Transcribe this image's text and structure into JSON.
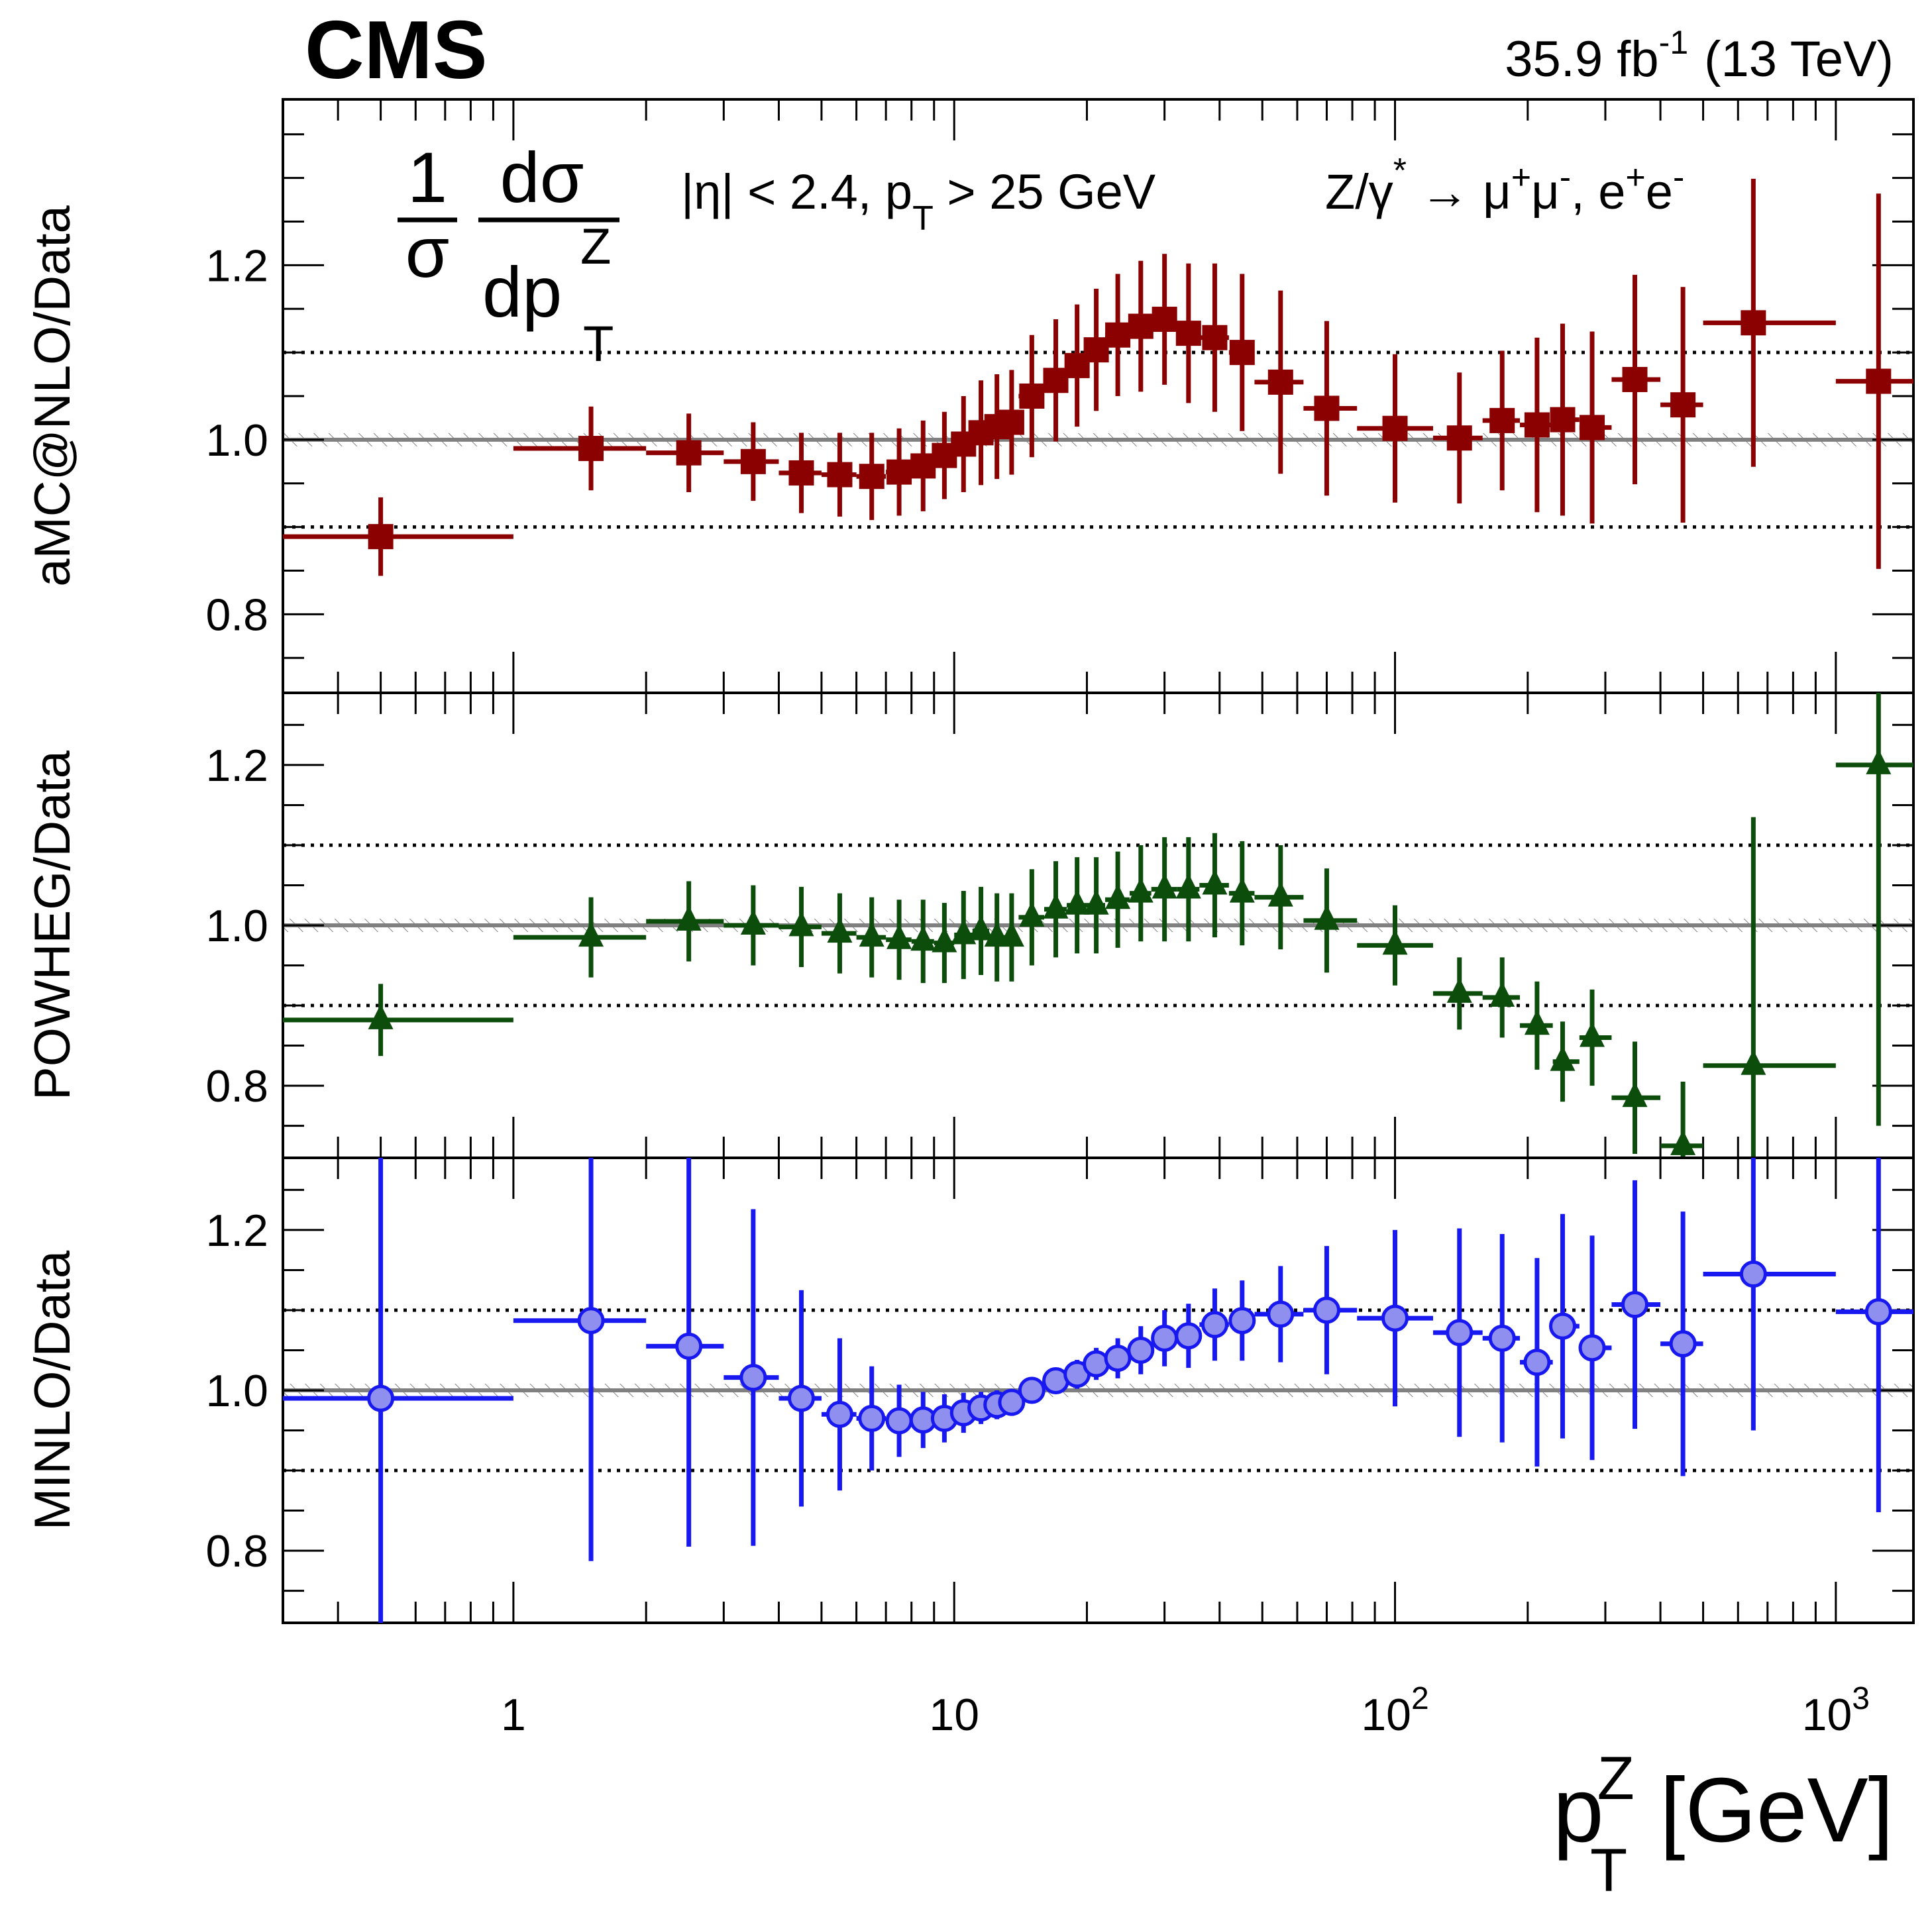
{
  "header": {
    "experiment": "CMS",
    "lumi_value": "35.9 fb",
    "lumi_exp": "-1",
    "energy": "(13 TeV)"
  },
  "annotation": {
    "formula": {
      "one": "1",
      "sigma": "σ",
      "dsigma": "dσ",
      "dp": "dp",
      "sup": "Z",
      "sub": "T"
    },
    "cuts": {
      "eta": "|η| < 2.4, p",
      "sub": "T",
      "rest": " > 25 GeV"
    },
    "process": {
      "a": "Z/γ",
      "star": "*",
      "b": " → μ",
      "plus": "+",
      "mu": "μ",
      "minus": "-",
      "c": ", e",
      "e": "e"
    }
  },
  "xaxis": {
    "tick_labels": [
      "1",
      "10",
      "10",
      "10"
    ],
    "tick_exponents": [
      "",
      "",
      "2",
      "3"
    ],
    "label_p": "p",
    "label_sup": "Z",
    "label_sub": "T",
    "label_unit": " [GeV]",
    "scale": "log",
    "range": [
      0.3,
      1500
    ]
  },
  "colors": {
    "amc": "#8b0000",
    "powheg": "#0c4d0c",
    "minlo_line": "#1818f0",
    "minlo_fill": "#8f8ff0",
    "reference": "#808080",
    "band": "#606060"
  },
  "chart_data": [
    {
      "type": "scatter",
      "ylabel": "aMC@NLO/Data",
      "ylim": [
        0.71,
        1.39
      ],
      "yticks": [
        "0.8",
        "1.0",
        "1.2"
      ],
      "grid": "dotted lines at 0.9 and 1.1",
      "marker": "square",
      "color": "#8b0000",
      "x": [
        0.5,
        1.5,
        2.5,
        3.5,
        4.5,
        5.5,
        6.5,
        7.5,
        8.5,
        9.5,
        10.5,
        11.5,
        12.5,
        13.5,
        15,
        17,
        19,
        21,
        23.5,
        26.5,
        30,
        34,
        39,
        45,
        55,
        70,
        100,
        140,
        175,
        210,
        240,
        280,
        350,
        450,
        650,
        1250
      ],
      "xlo": [
        0.3,
        1,
        2,
        3,
        4,
        5,
        6,
        7,
        8,
        9,
        10,
        11,
        12,
        13,
        14,
        16,
        18,
        20,
        22,
        25,
        28,
        32,
        36,
        42,
        48,
        62,
        82,
        122,
        158,
        192,
        228,
        262,
        310,
        400,
        500,
        1000
      ],
      "xhi": [
        1,
        2,
        3,
        4,
        5,
        6,
        7,
        8,
        9,
        10,
        11,
        12,
        13,
        14,
        16,
        18,
        20,
        22,
        25,
        28,
        32,
        36,
        42,
        48,
        62,
        82,
        122,
        158,
        192,
        228,
        262,
        310,
        400,
        500,
        1000,
        1500
      ],
      "values": [
        0.889,
        0.99,
        0.985,
        0.975,
        0.962,
        0.96,
        0.958,
        0.963,
        0.97,
        0.982,
        0.995,
        1.008,
        1.015,
        1.02,
        1.05,
        1.068,
        1.085,
        1.103,
        1.12,
        1.13,
        1.138,
        1.122,
        1.117,
        1.1,
        1.066,
        1.036,
        1.013,
        1.002,
        1.022,
        1.017,
        1.023,
        1.014,
        1.069,
        1.04,
        1.134,
        1.067
      ],
      "err": [
        0.045,
        0.048,
        0.045,
        0.045,
        0.046,
        0.048,
        0.05,
        0.05,
        0.052,
        0.05,
        0.055,
        0.06,
        0.06,
        0.06,
        0.07,
        0.07,
        0.07,
        0.07,
        0.07,
        0.075,
        0.075,
        0.08,
        0.085,
        0.09,
        0.105,
        0.1,
        0.085,
        0.075,
        0.08,
        0.1,
        0.11,
        0.11,
        0.12,
        0.135,
        0.165,
        0.215
      ]
    },
    {
      "type": "scatter",
      "ylabel": "POWHEG/Data",
      "ylim": [
        0.71,
        1.29
      ],
      "yticks": [
        "0.8",
        "1.0",
        "1.2"
      ],
      "grid": "dotted lines at 0.9 and 1.1",
      "marker": "triangle",
      "color": "#0c4d0c",
      "x": [
        0.5,
        1.5,
        2.5,
        3.5,
        4.5,
        5.5,
        6.5,
        7.5,
        8.5,
        9.5,
        10.5,
        11.5,
        12.5,
        13.5,
        15,
        17,
        19,
        21,
        23.5,
        26.5,
        30,
        34,
        39,
        45,
        55,
        70,
        100,
        140,
        175,
        210,
        240,
        280,
        350,
        450,
        650,
        1250
      ],
      "xlo": [
        0.3,
        1,
        2,
        3,
        4,
        5,
        6,
        7,
        8,
        9,
        10,
        11,
        12,
        13,
        14,
        16,
        18,
        20,
        22,
        25,
        28,
        32,
        36,
        42,
        48,
        62,
        82,
        122,
        158,
        192,
        228,
        262,
        310,
        400,
        500,
        1000
      ],
      "xhi": [
        1,
        2,
        3,
        4,
        5,
        6,
        7,
        8,
        9,
        10,
        11,
        12,
        13,
        14,
        16,
        18,
        20,
        22,
        25,
        28,
        32,
        36,
        42,
        48,
        62,
        82,
        122,
        158,
        192,
        228,
        262,
        310,
        400,
        500,
        1000,
        1500
      ],
      "values": [
        0.882,
        0.985,
        1.005,
        1.0,
        0.998,
        0.99,
        0.985,
        0.982,
        0.98,
        0.978,
        0.988,
        0.993,
        0.985,
        0.985,
        1.01,
        1.02,
        1.025,
        1.025,
        1.032,
        1.04,
        1.045,
        1.045,
        1.05,
        1.04,
        1.035,
        1.006,
        0.975,
        0.915,
        0.91,
        0.875,
        0.83,
        0.86,
        0.785,
        0.725,
        0.825,
        1.2
      ],
      "err": [
        0.045,
        0.05,
        0.05,
        0.05,
        0.05,
        0.05,
        0.05,
        0.05,
        0.052,
        0.05,
        0.055,
        0.055,
        0.055,
        0.055,
        0.06,
        0.06,
        0.06,
        0.06,
        0.06,
        0.06,
        0.065,
        0.065,
        0.065,
        0.065,
        0.065,
        0.065,
        0.05,
        0.045,
        0.05,
        0.055,
        0.05,
        0.06,
        0.07,
        0.08,
        0.31,
        0.45
      ]
    },
    {
      "type": "scatter",
      "ylabel": "MINLO/Data",
      "ylim": [
        0.71,
        1.29
      ],
      "yticks": [
        "0.8",
        "1.0",
        "1.2"
      ],
      "grid": "dotted lines at 0.9 and 1.1",
      "marker": "circle",
      "color": "#1818f0",
      "x": [
        0.5,
        1.5,
        2.5,
        3.5,
        4.5,
        5.5,
        6.5,
        7.5,
        8.5,
        9.5,
        10.5,
        11.5,
        12.5,
        13.5,
        15,
        17,
        19,
        21,
        23.5,
        26.5,
        30,
        34,
        39,
        45,
        55,
        70,
        100,
        140,
        175,
        210,
        240,
        280,
        350,
        450,
        650,
        1250
      ],
      "xlo": [
        0.3,
        1,
        2,
        3,
        4,
        5,
        6,
        7,
        8,
        9,
        10,
        11,
        12,
        13,
        14,
        16,
        18,
        20,
        22,
        25,
        28,
        32,
        36,
        42,
        48,
        62,
        82,
        122,
        158,
        192,
        228,
        262,
        310,
        400,
        500,
        1000
      ],
      "xhi": [
        1,
        2,
        3,
        4,
        5,
        6,
        7,
        8,
        9,
        10,
        11,
        12,
        13,
        14,
        16,
        18,
        20,
        22,
        25,
        28,
        32,
        36,
        42,
        48,
        62,
        82,
        122,
        158,
        192,
        228,
        262,
        310,
        400,
        500,
        1000,
        1500
      ],
      "values": [
        0.99,
        1.087,
        1.055,
        1.016,
        0.99,
        0.97,
        0.965,
        0.962,
        0.963,
        0.965,
        0.972,
        0.978,
        0.982,
        0.985,
        1.0,
        1.012,
        1.02,
        1.033,
        1.04,
        1.05,
        1.065,
        1.068,
        1.082,
        1.087,
        1.095,
        1.1,
        1.09,
        1.072,
        1.065,
        1.035,
        1.08,
        1.053,
        1.107,
        1.058,
        1.145,
        1.098
      ],
      "err": [
        0.4,
        0.3,
        0.25,
        0.21,
        0.135,
        0.095,
        0.065,
        0.045,
        0.035,
        0.03,
        0.025,
        0.02,
        0.018,
        0.015,
        0.015,
        0.015,
        0.018,
        0.02,
        0.025,
        0.03,
        0.035,
        0.04,
        0.045,
        0.05,
        0.06,
        0.08,
        0.11,
        0.13,
        0.13,
        0.13,
        0.14,
        0.14,
        0.155,
        0.165,
        0.195,
        0.25
      ]
    }
  ]
}
